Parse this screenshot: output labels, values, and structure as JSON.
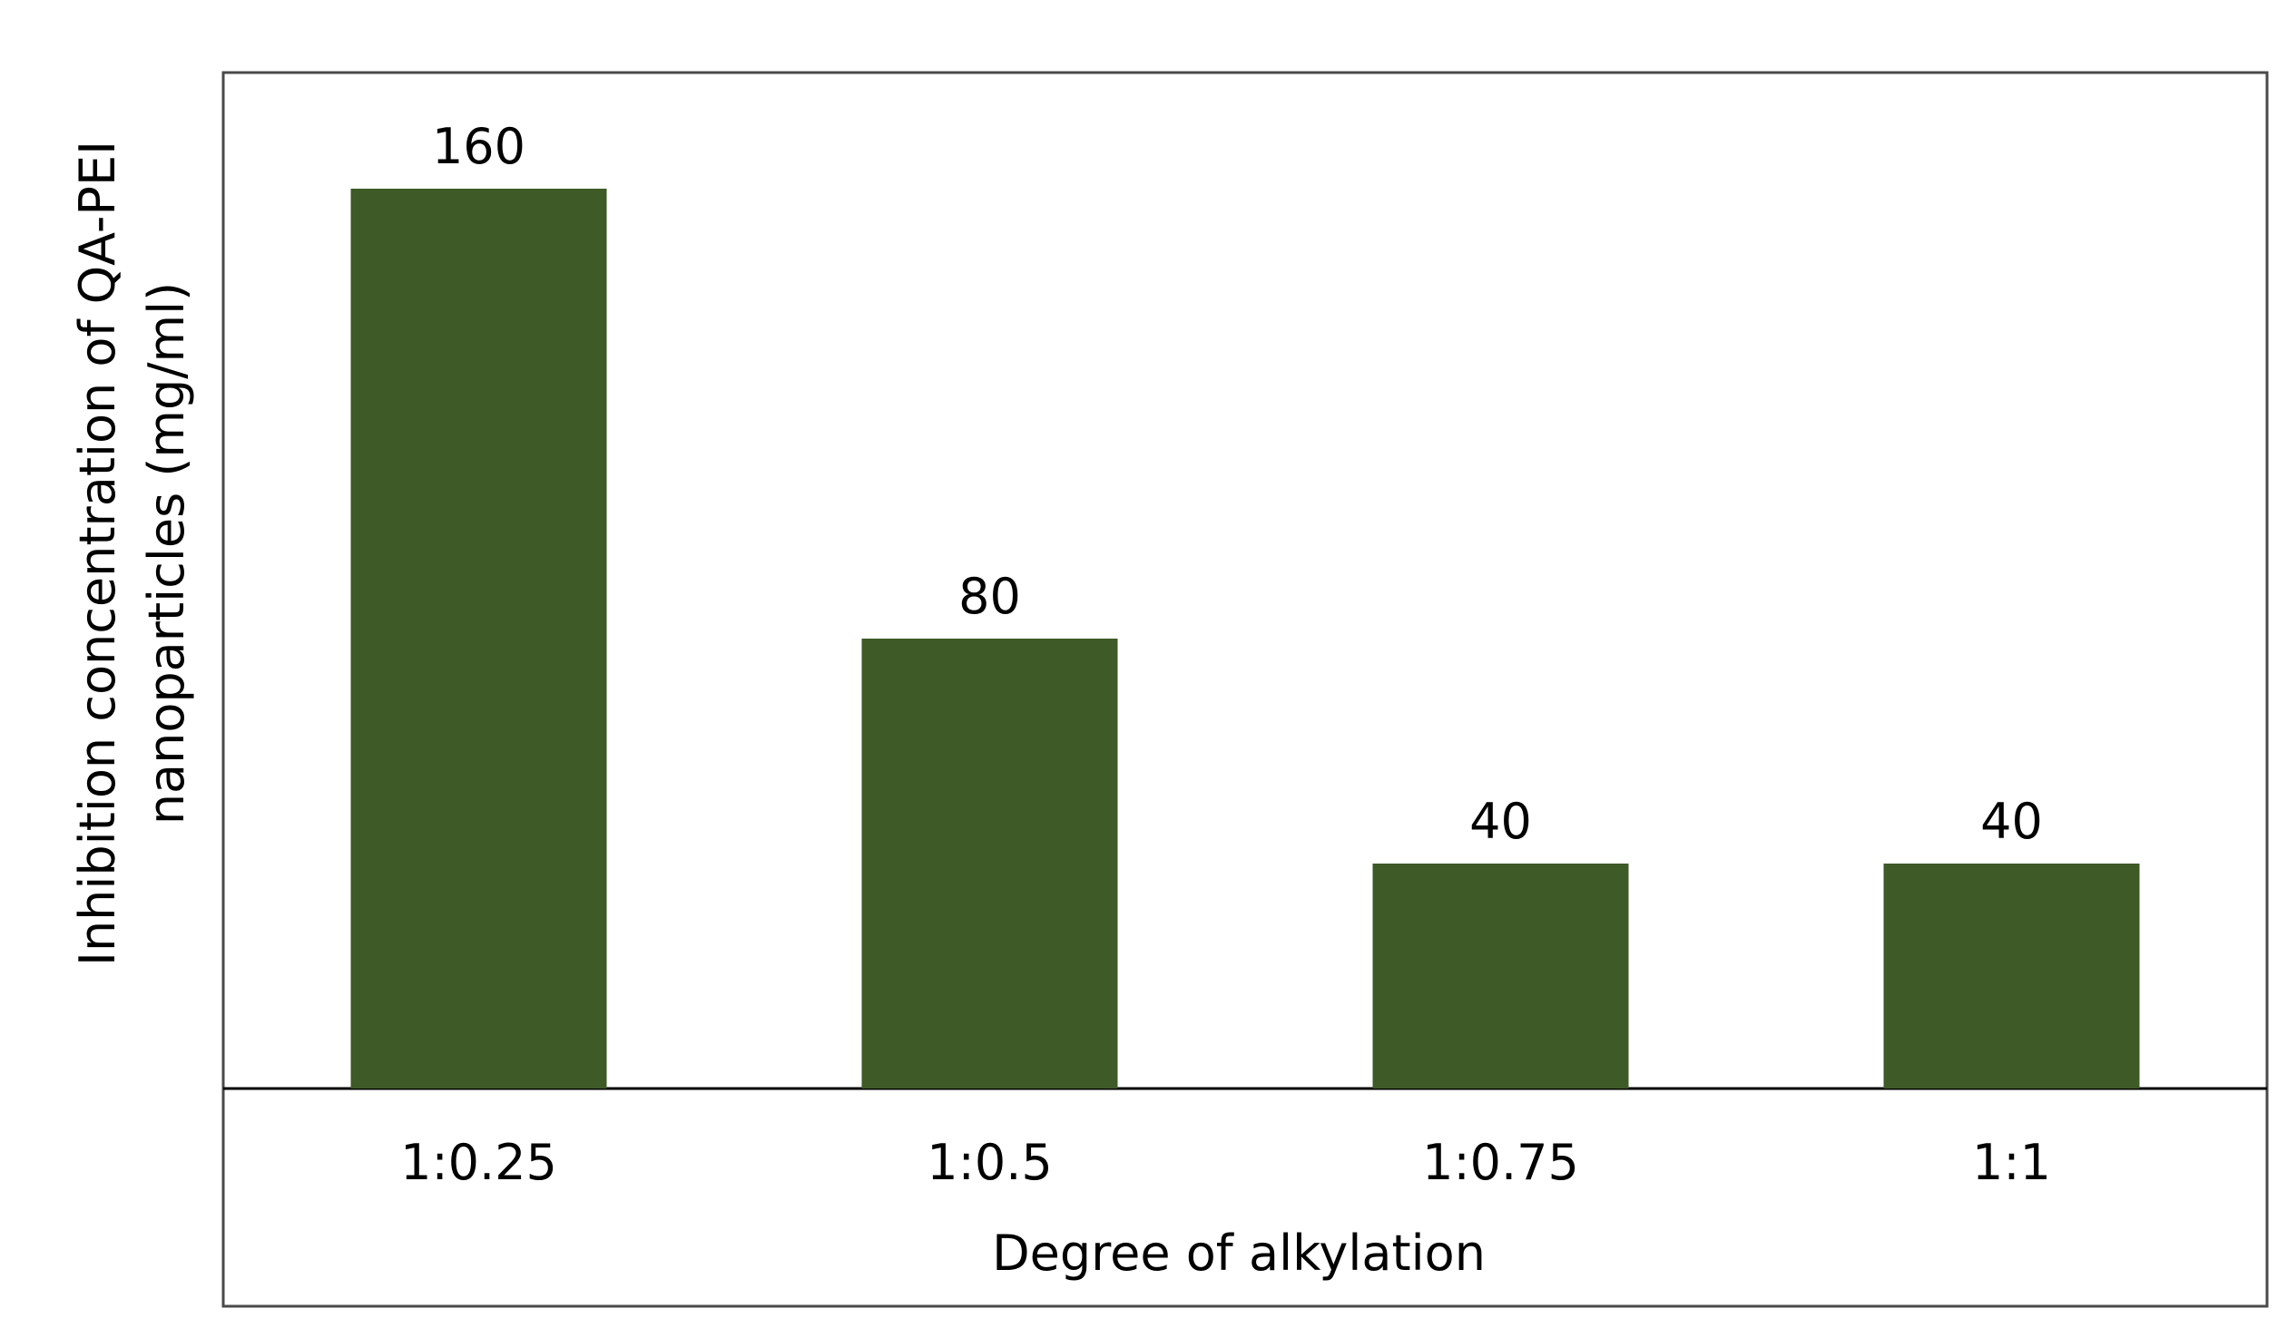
{
  "chart_data": {
    "type": "bar",
    "title": "",
    "xlabel": "Degree of alkylation",
    "ylabel": "Inhibition concentration of QA-PEI nanoparticles (mg/ml)",
    "ylabel_lines": [
      "Inhibition concentration of QA-PEI",
      "nanoparticles (mg/ml)"
    ],
    "categories": [
      "1:0.25",
      "1:0.5",
      "1:0.75",
      "1:1"
    ],
    "values": [
      160,
      80,
      40,
      40
    ],
    "data_labels": [
      "160",
      "80",
      "40",
      "40"
    ],
    "ylim": [
      0,
      180
    ],
    "grid": false,
    "legend": "none",
    "bar_color": "#3d5a27"
  }
}
